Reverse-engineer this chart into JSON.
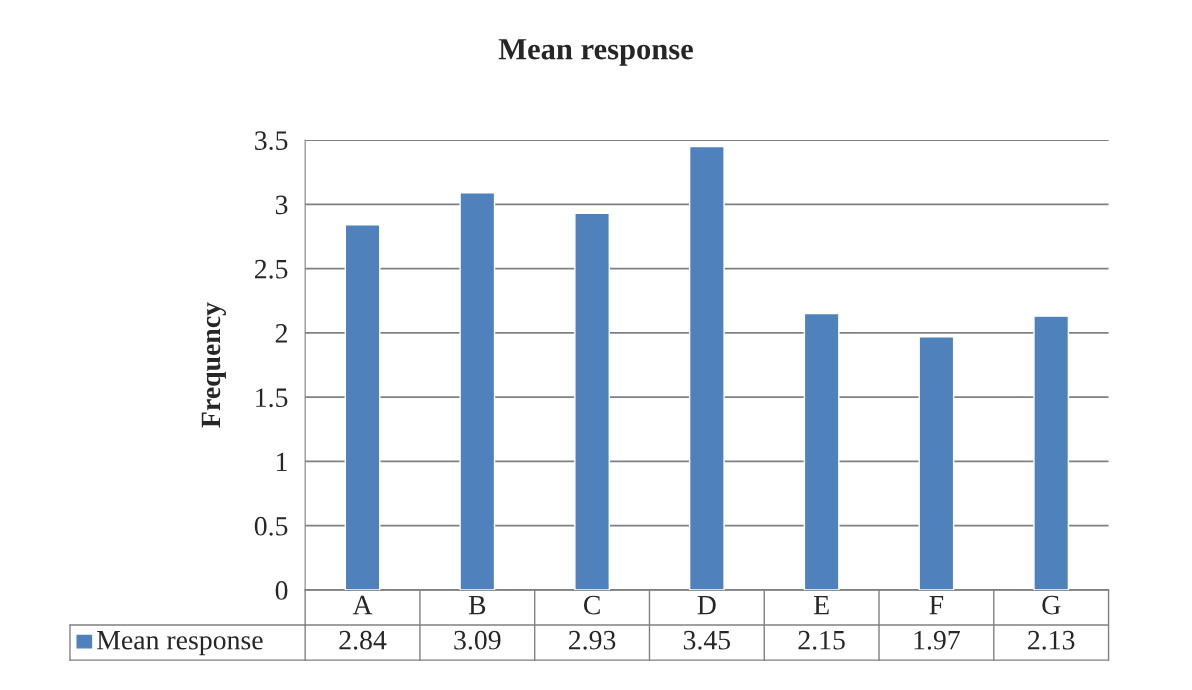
{
  "chart_data": {
    "type": "bar",
    "title": "Mean response",
    "ylabel": "Frequency",
    "categories": [
      "A",
      "B",
      "C",
      "D",
      "E",
      "F",
      "G"
    ],
    "series": [
      {
        "name": "Mean response",
        "color": "#4f81bd",
        "values": [
          2.84,
          3.09,
          2.93,
          3.45,
          2.15,
          1.97,
          2.13
        ]
      }
    ],
    "ylim": [
      0,
      3.5
    ],
    "yticks": [
      0,
      0.5,
      1,
      1.5,
      2,
      2.5,
      3,
      3.5
    ],
    "grid": "y",
    "legend": "bottom",
    "data_labels": true
  }
}
